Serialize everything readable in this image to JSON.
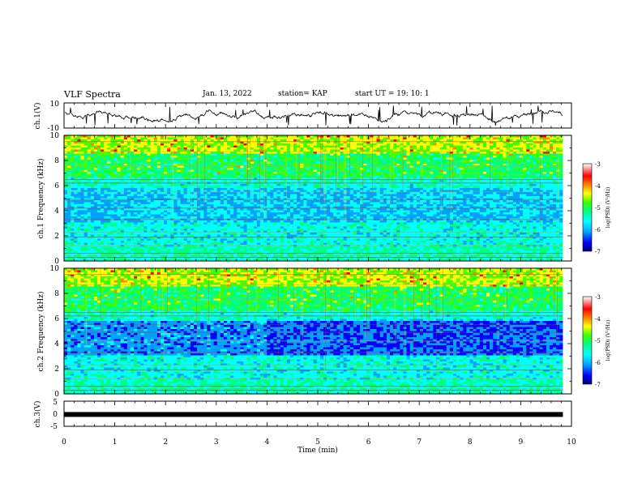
{
  "header": {
    "title": "VLF Spectra",
    "date": "Jan. 13, 2022",
    "station": "station= KAP",
    "start": "start UT =  19: 10: 1"
  },
  "chart_data": [
    {
      "type": "line",
      "panel": "ch1-waveform",
      "ylabel": "ch.1(V)",
      "ylim": [
        -10,
        10
      ],
      "yticks": [
        "10",
        "-10"
      ],
      "xlim": [
        0,
        10
      ],
      "color": "#000000"
    },
    {
      "type": "heatmap",
      "panel": "ch1-spectrogram",
      "ylabel": "ch.1 Frequency (kHz)",
      "ylim": [
        0,
        10
      ],
      "yticks": [
        "0",
        "2",
        "4",
        "6",
        "8",
        "10"
      ],
      "xlim": [
        0,
        10
      ],
      "colorbar": {
        "label": "log(PSD) (V²/Hz)",
        "ticks": [
          "-3",
          "-4",
          "-5",
          "-6",
          "-7"
        ],
        "range": [
          -7,
          -3
        ]
      }
    },
    {
      "type": "heatmap",
      "panel": "ch2-spectrogram",
      "ylabel": "ch.2 Frequency (kHz)",
      "ylim": [
        0,
        10
      ],
      "yticks": [
        "0",
        "2",
        "4",
        "6",
        "8",
        "10"
      ],
      "xlim": [
        0,
        10
      ],
      "colorbar": {
        "label": "log(PSD) (V²/Hz)",
        "ticks": [
          "-3",
          "-4",
          "-5",
          "-6",
          "-7"
        ],
        "range": [
          -7,
          -3
        ]
      }
    },
    {
      "type": "line",
      "panel": "ch3-waveform",
      "ylabel": "ch.3(V)",
      "ylim": [
        -5,
        5
      ],
      "yticks": [
        "5",
        "0",
        "-5"
      ],
      "xlim": [
        0,
        10
      ],
      "value": -0.3
    }
  ],
  "xaxis": {
    "label": "Time (min)",
    "ticks": [
      "0",
      "1",
      "2",
      "3",
      "4",
      "5",
      "6",
      "7",
      "8",
      "9",
      "10"
    ],
    "data_end": 9.83
  },
  "colormap": [
    "#000070",
    "#0000ff",
    "#00a0ff",
    "#00ffff",
    "#00ff80",
    "#40ff00",
    "#ffff00",
    "#ff8000",
    "#ff0000",
    "#ffffff"
  ]
}
